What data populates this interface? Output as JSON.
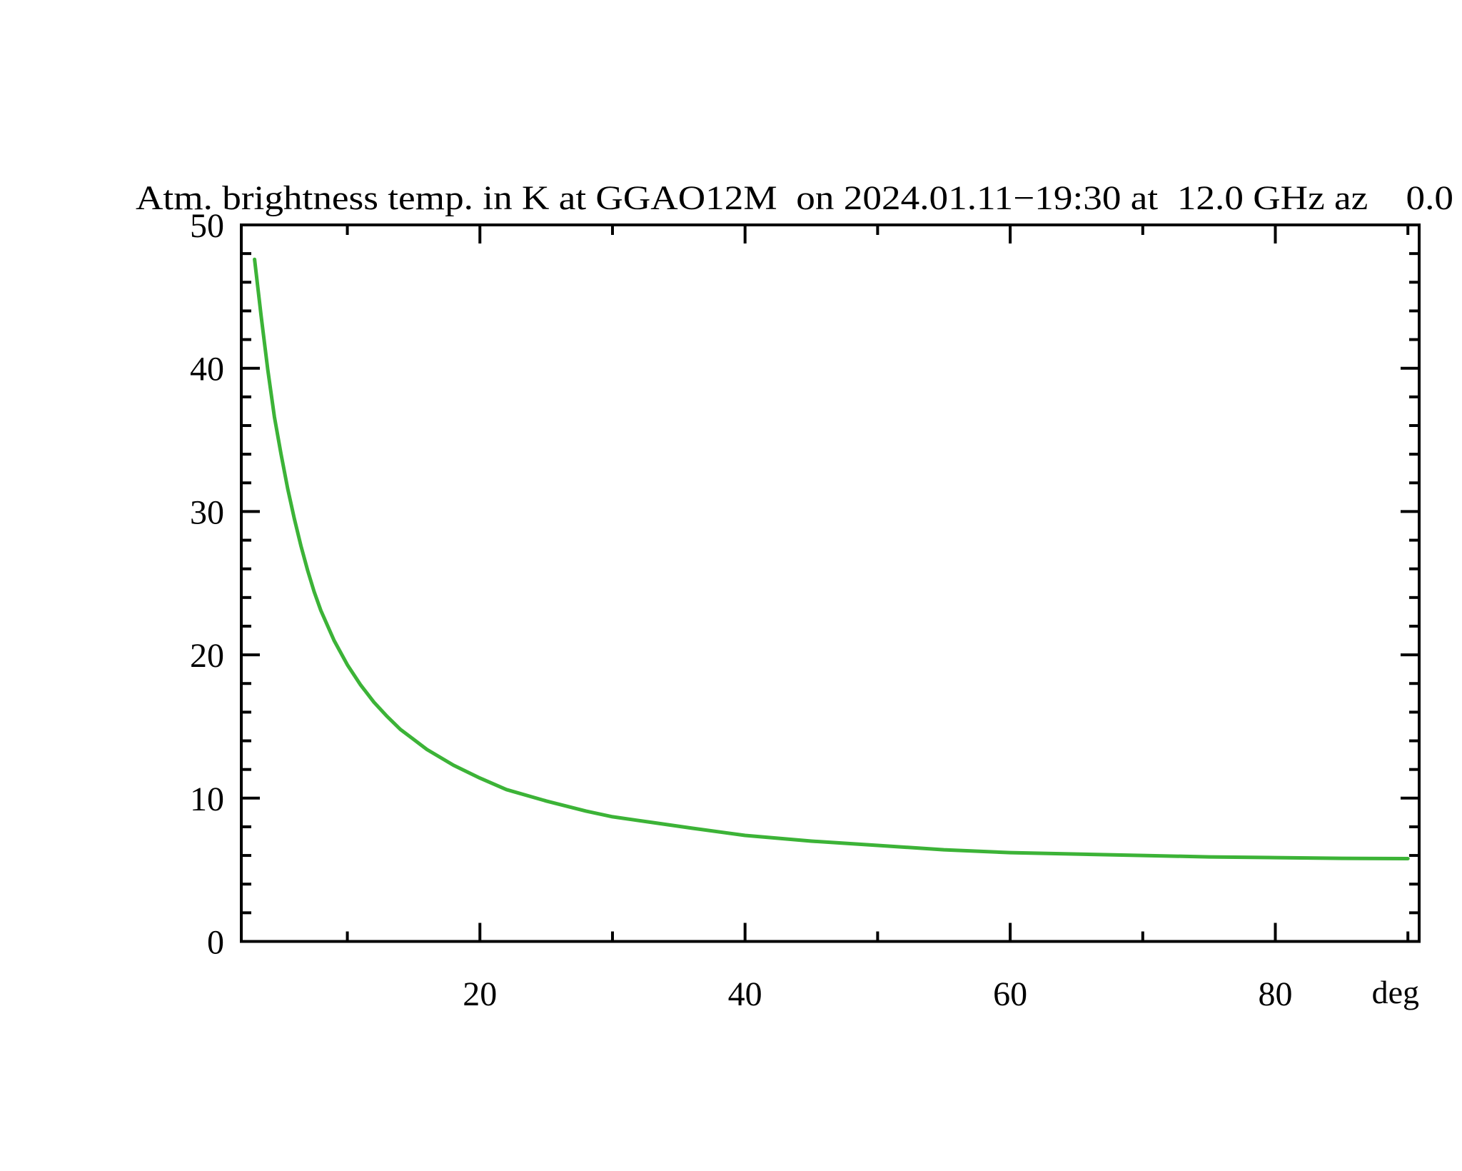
{
  "chart_data": {
    "type": "line",
    "title": "Atm. brightness temp. in K at GGAO12M  on 2024.01.11−19:30 at  12.0 GHz az    0.0",
    "xlabel": "deg",
    "ylabel": "",
    "xlim": [
      2,
      90.85
    ],
    "ylim": [
      0,
      50
    ],
    "x_major_ticks": [
      20,
      40,
      60,
      80
    ],
    "x_minor_ticks": [
      10,
      30,
      50,
      70,
      90
    ],
    "y_major_ticks": [
      0,
      10,
      20,
      30,
      40,
      50
    ],
    "y_minor_tick_step": 2,
    "grid": false,
    "legend": "none",
    "axis_color": "#000000",
    "background_color": "#ffffff",
    "series": [
      {
        "name": "atmospheric brightness temperature",
        "color": "#3CB337",
        "x": [
          3,
          3.5,
          4,
          4.5,
          5,
          5.5,
          6,
          6.5,
          7,
          7.5,
          8,
          9,
          10,
          11,
          12,
          13,
          14,
          15,
          16,
          18,
          20,
          22,
          25,
          28,
          30,
          33,
          36,
          40,
          45,
          50,
          55,
          60,
          65,
          70,
          75,
          80,
          85,
          90
        ],
        "y": [
          47.6,
          43.6,
          39.9,
          36.6,
          34.0,
          31.6,
          29.5,
          27.6,
          25.9,
          24.4,
          23.1,
          21.0,
          19.3,
          17.9,
          16.7,
          15.7,
          14.8,
          14.1,
          13.4,
          12.3,
          11.4,
          10.6,
          9.8,
          9.1,
          8.7,
          8.3,
          7.9,
          7.4,
          7.0,
          6.7,
          6.4,
          6.2,
          6.1,
          6.0,
          5.9,
          5.85,
          5.8,
          5.78
        ]
      }
    ]
  }
}
